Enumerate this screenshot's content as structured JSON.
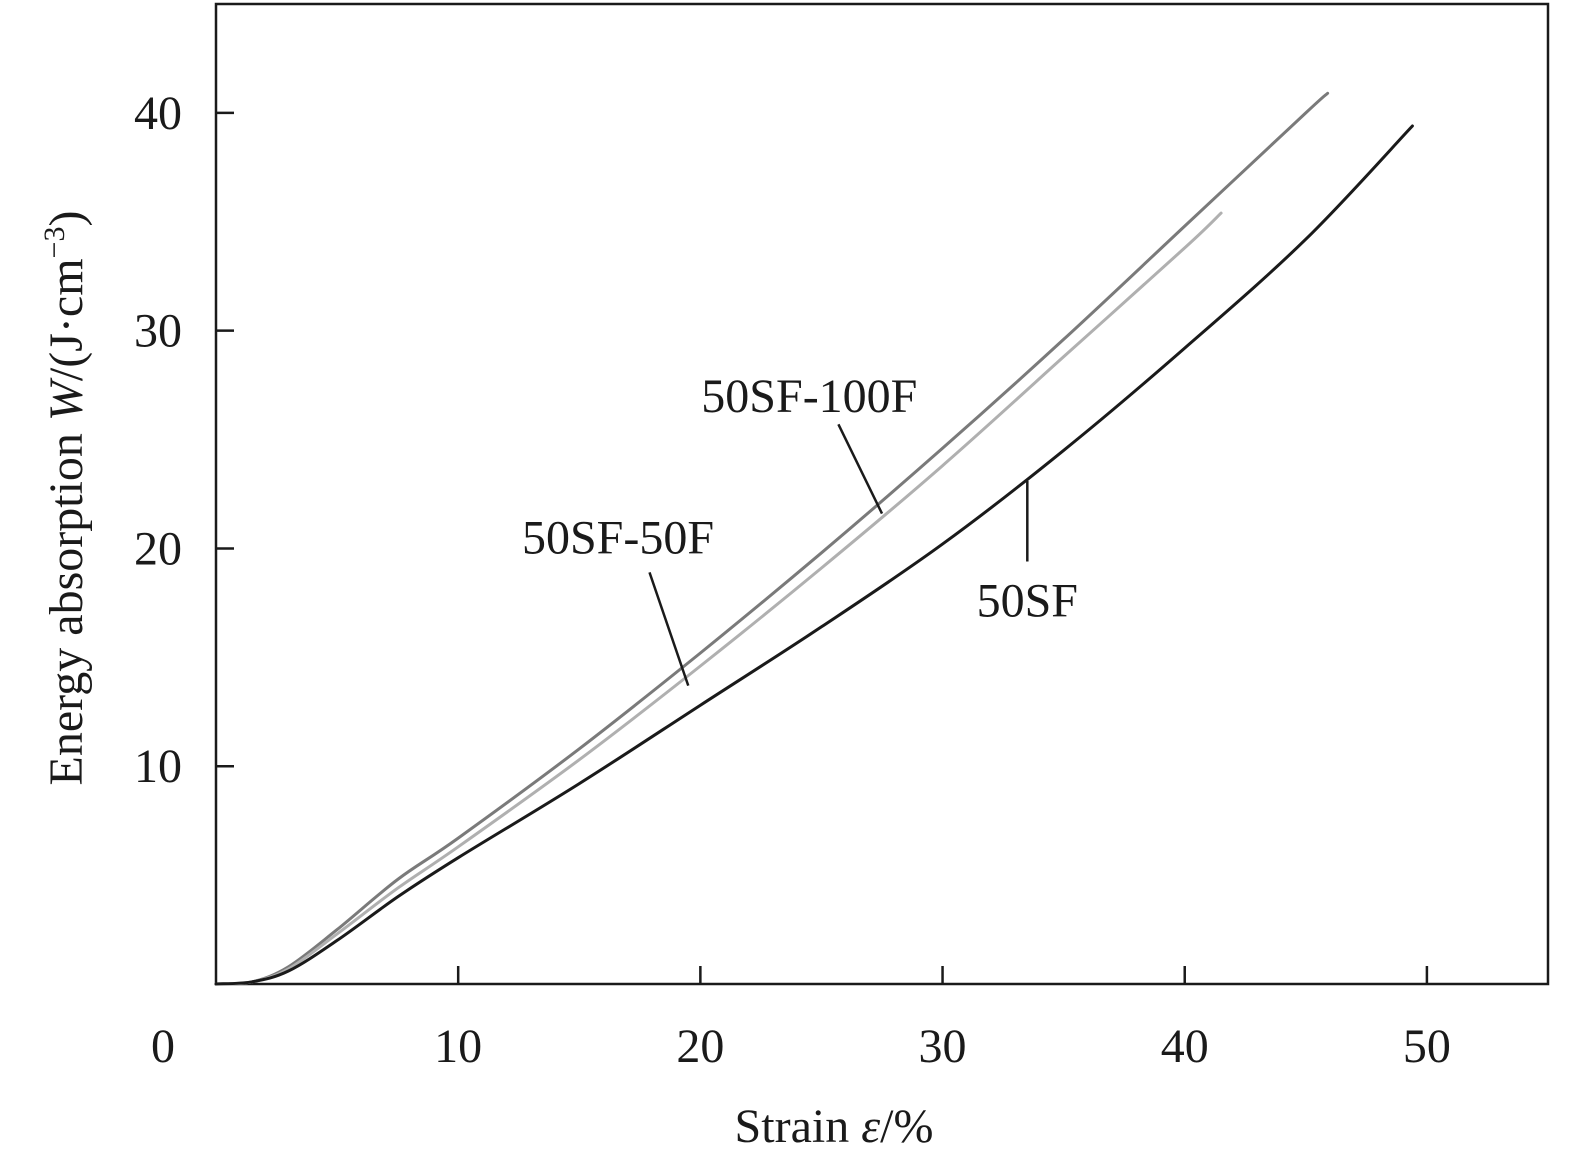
{
  "chart_data": {
    "type": "line",
    "title": "",
    "xlabel": "Strain ε/%",
    "xlabel_parts": {
      "prefix": "Strain ",
      "var": "ε",
      "suffix": "/%"
    },
    "ylabel": "Energy absorption W/(J·cm−3)",
    "ylabel_parts": {
      "prefix": "Energy absorption ",
      "var": "W",
      "unit": "/(J·cm",
      "exp": "−3",
      "close": ")"
    },
    "origin_label": "0",
    "xlim": [
      0,
      55
    ],
    "ylim": [
      0,
      45
    ],
    "xticks": [
      10,
      20,
      30,
      40,
      50
    ],
    "xtick_labels": [
      "10",
      "20",
      "30",
      "40",
      "50"
    ],
    "yticks": [
      10,
      20,
      30,
      40
    ],
    "ytick_labels": [
      "10",
      "20",
      "30",
      "40"
    ],
    "grid": false,
    "legend": "none",
    "series": [
      {
        "name": "50SF-100F",
        "color": "#7a7a7a",
        "points": [
          [
            0,
            0
          ],
          [
            1.5,
            0.1
          ],
          [
            3,
            0.8
          ],
          [
            5,
            2.5
          ],
          [
            7.5,
            4.8
          ],
          [
            10,
            6.7
          ],
          [
            15,
            10.8
          ],
          [
            20,
            15.2
          ],
          [
            25,
            19.8
          ],
          [
            30,
            24.6
          ],
          [
            35,
            29.6
          ],
          [
            40,
            34.8
          ],
          [
            45,
            40.0
          ],
          [
            45.9,
            40.9
          ]
        ]
      },
      {
        "name": "50SF-50F",
        "color": "#b0b0b0",
        "points": [
          [
            0,
            0
          ],
          [
            1.5,
            0.1
          ],
          [
            3,
            0.7
          ],
          [
            5,
            2.3
          ],
          [
            7.5,
            4.4
          ],
          [
            10,
            6.3
          ],
          [
            15,
            10.3
          ],
          [
            20,
            14.6
          ],
          [
            25,
            19.1
          ],
          [
            30,
            23.8
          ],
          [
            35,
            28.8
          ],
          [
            40,
            33.8
          ],
          [
            41.5,
            35.4
          ]
        ]
      },
      {
        "name": "50SF",
        "color": "#1a1a1a",
        "points": [
          [
            0,
            0
          ],
          [
            1.5,
            0.1
          ],
          [
            3,
            0.6
          ],
          [
            5,
            2.0
          ],
          [
            7.5,
            4.0
          ],
          [
            10,
            5.8
          ],
          [
            15,
            9.2
          ],
          [
            20,
            12.8
          ],
          [
            25,
            16.4
          ],
          [
            30,
            20.2
          ],
          [
            35,
            24.5
          ],
          [
            40,
            29.2
          ],
          [
            45,
            34.2
          ],
          [
            49.4,
            39.4
          ]
        ]
      }
    ],
    "annotations": [
      {
        "text": "50SF-100F",
        "series": "50SF-100F",
        "label_at": [
          24.5,
          27.0
        ],
        "point": [
          27.5,
          21.6
        ],
        "leader_from": [
          25.7,
          25.7
        ]
      },
      {
        "text": "50SF-50F",
        "series": "50SF-50F",
        "label_at": [
          16.6,
          20.5
        ],
        "point": [
          19.5,
          13.7
        ],
        "leader_from": [
          17.9,
          18.9
        ]
      },
      {
        "text": "50SF",
        "series": "50SF",
        "label_at": [
          33.5,
          17.6
        ],
        "point": [
          33.5,
          23.1
        ],
        "leader_from": [
          33.5,
          19.4
        ]
      }
    ]
  }
}
